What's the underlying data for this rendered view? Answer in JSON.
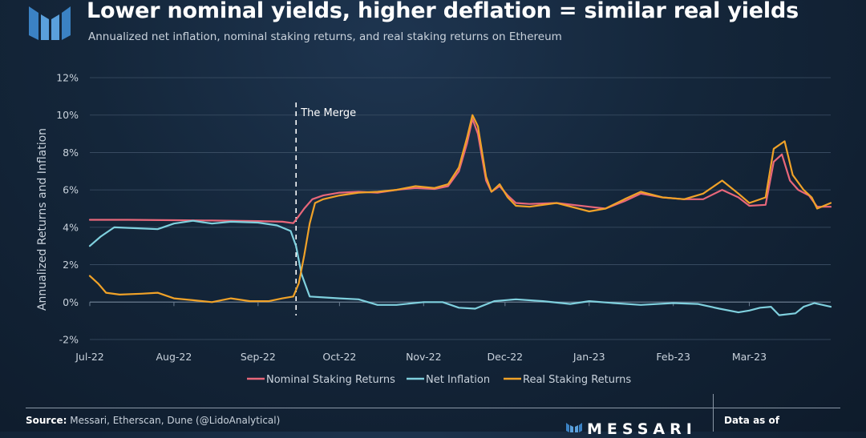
{
  "header": {
    "title": "Lower nominal yields, higher deflation = similar real yields",
    "subtitle": "Annualized net inflation, nominal staking returns, and real staking returns on Ethereum"
  },
  "footer": {
    "source_label": "Source:",
    "source_text": "Messari, Etherscan, Dune (@LidoAnalytical)",
    "brand": "MESSARI",
    "data_as_of": "Data as of"
  },
  "colors": {
    "nominal": "#e8677a",
    "inflation": "#7fd0de",
    "real": "#f0a228",
    "grid": "#3d5066",
    "text": "#c9d2dc"
  },
  "chart_data": {
    "type": "line",
    "ylabel": "Annualized Returns and Inflation",
    "xlabel": "",
    "ylim": [
      -2,
      12
    ],
    "yticks": [
      -2,
      0,
      2,
      4,
      6,
      8,
      10,
      12
    ],
    "ytick_labels": [
      "-2%",
      "0%",
      "2%",
      "4%",
      "6%",
      "8%",
      "10%",
      "12%"
    ],
    "x_start": "2022-07-01",
    "x_end": "2023-03-31",
    "xticks": [
      {
        "date": "2022-07-01",
        "label": "Jul-22"
      },
      {
        "date": "2022-08-01",
        "label": "Aug-22"
      },
      {
        "date": "2022-09-01",
        "label": "Sep-22"
      },
      {
        "date": "2022-10-01",
        "label": "Oct-22"
      },
      {
        "date": "2022-11-01",
        "label": "Nov-22"
      },
      {
        "date": "2022-12-01",
        "label": "Dec-22"
      },
      {
        "date": "2023-01-01",
        "label": "Jan-23"
      },
      {
        "date": "2023-02-01",
        "label": "Feb-23"
      },
      {
        "date": "2023-03-01",
        "label": "Mar-23"
      }
    ],
    "annotation": {
      "date": "2022-09-15",
      "label": "The Merge"
    },
    "grid": true,
    "legend_position": "bottom",
    "series": [
      {
        "name": "Nominal Staking Returns",
        "color_key": "nominal",
        "points": [
          [
            "2022-07-01",
            4.4
          ],
          [
            "2022-07-15",
            4.4
          ],
          [
            "2022-08-01",
            4.38
          ],
          [
            "2022-08-15",
            4.36
          ],
          [
            "2022-09-01",
            4.33
          ],
          [
            "2022-09-10",
            4.3
          ],
          [
            "2022-09-14",
            4.22
          ],
          [
            "2022-09-16",
            4.6
          ],
          [
            "2022-09-18",
            5.0
          ],
          [
            "2022-09-21",
            5.5
          ],
          [
            "2022-09-25",
            5.7
          ],
          [
            "2022-10-01",
            5.85
          ],
          [
            "2022-10-08",
            5.9
          ],
          [
            "2022-10-15",
            5.85
          ],
          [
            "2022-10-22",
            6.0
          ],
          [
            "2022-10-29",
            6.1
          ],
          [
            "2022-11-05",
            6.05
          ],
          [
            "2022-11-10",
            6.2
          ],
          [
            "2022-11-14",
            7.0
          ],
          [
            "2022-11-17",
            8.5
          ],
          [
            "2022-11-19",
            9.8
          ],
          [
            "2022-11-21",
            9.0
          ],
          [
            "2022-11-24",
            6.5
          ],
          [
            "2022-11-26",
            5.9
          ],
          [
            "2022-11-29",
            6.2
          ],
          [
            "2022-12-02",
            5.7
          ],
          [
            "2022-12-05",
            5.3
          ],
          [
            "2022-12-10",
            5.25
          ],
          [
            "2022-12-20",
            5.3
          ],
          [
            "2023-01-01",
            5.1
          ],
          [
            "2023-01-07",
            5.0
          ],
          [
            "2023-01-14",
            5.4
          ],
          [
            "2023-01-20",
            5.8
          ],
          [
            "2023-01-28",
            5.6
          ],
          [
            "2023-02-05",
            5.5
          ],
          [
            "2023-02-12",
            5.5
          ],
          [
            "2023-02-19",
            6.0
          ],
          [
            "2023-02-25",
            5.6
          ],
          [
            "2023-03-01",
            5.15
          ],
          [
            "2023-03-07",
            5.2
          ],
          [
            "2023-03-10",
            7.5
          ],
          [
            "2023-03-13",
            7.9
          ],
          [
            "2023-03-16",
            6.5
          ],
          [
            "2023-03-19",
            6.0
          ],
          [
            "2023-03-23",
            5.7
          ],
          [
            "2023-03-26",
            5.1
          ],
          [
            "2023-03-31",
            5.1
          ]
        ]
      },
      {
        "name": "Net Inflation",
        "color_key": "inflation",
        "points": [
          [
            "2022-07-01",
            3.0
          ],
          [
            "2022-07-05",
            3.5
          ],
          [
            "2022-07-10",
            4.0
          ],
          [
            "2022-07-18",
            3.95
          ],
          [
            "2022-07-26",
            3.9
          ],
          [
            "2022-08-01",
            4.2
          ],
          [
            "2022-08-08",
            4.35
          ],
          [
            "2022-08-15",
            4.2
          ],
          [
            "2022-08-22",
            4.3
          ],
          [
            "2022-09-01",
            4.25
          ],
          [
            "2022-09-08",
            4.1
          ],
          [
            "2022-09-13",
            3.8
          ],
          [
            "2022-09-15",
            3.0
          ],
          [
            "2022-09-17",
            1.5
          ],
          [
            "2022-09-20",
            0.3
          ],
          [
            "2022-09-25",
            0.25
          ],
          [
            "2022-10-01",
            0.2
          ],
          [
            "2022-10-08",
            0.15
          ],
          [
            "2022-10-15",
            -0.15
          ],
          [
            "2022-10-22",
            -0.15
          ],
          [
            "2022-11-01",
            0.0
          ],
          [
            "2022-11-08",
            0.0
          ],
          [
            "2022-11-14",
            -0.3
          ],
          [
            "2022-11-20",
            -0.35
          ],
          [
            "2022-11-27",
            0.05
          ],
          [
            "2022-12-05",
            0.15
          ],
          [
            "2022-12-15",
            0.05
          ],
          [
            "2022-12-25",
            -0.1
          ],
          [
            "2023-01-01",
            0.05
          ],
          [
            "2023-01-10",
            -0.05
          ],
          [
            "2023-01-20",
            -0.15
          ],
          [
            "2023-02-01",
            -0.05
          ],
          [
            "2023-02-10",
            -0.1
          ],
          [
            "2023-02-18",
            -0.35
          ],
          [
            "2023-02-25",
            -0.55
          ],
          [
            "2023-03-01",
            -0.45
          ],
          [
            "2023-03-05",
            -0.3
          ],
          [
            "2023-03-09",
            -0.25
          ],
          [
            "2023-03-12",
            -0.7
          ],
          [
            "2023-03-18",
            -0.6
          ],
          [
            "2023-03-21",
            -0.25
          ],
          [
            "2023-03-25",
            -0.05
          ],
          [
            "2023-03-31",
            -0.25
          ]
        ]
      },
      {
        "name": "Real Staking Returns",
        "color_key": "real",
        "points": [
          [
            "2022-07-01",
            1.4
          ],
          [
            "2022-07-04",
            1.0
          ],
          [
            "2022-07-07",
            0.5
          ],
          [
            "2022-07-12",
            0.4
          ],
          [
            "2022-07-20",
            0.45
          ],
          [
            "2022-07-26",
            0.5
          ],
          [
            "2022-08-01",
            0.2
          ],
          [
            "2022-08-08",
            0.1
          ],
          [
            "2022-08-15",
            0.0
          ],
          [
            "2022-08-22",
            0.2
          ],
          [
            "2022-08-29",
            0.05
          ],
          [
            "2022-09-05",
            0.05
          ],
          [
            "2022-09-10",
            0.2
          ],
          [
            "2022-09-14",
            0.3
          ],
          [
            "2022-09-16",
            1.0
          ],
          [
            "2022-09-18",
            2.5
          ],
          [
            "2022-09-20",
            4.2
          ],
          [
            "2022-09-22",
            5.3
          ],
          [
            "2022-09-25",
            5.5
          ],
          [
            "2022-10-01",
            5.7
          ],
          [
            "2022-10-08",
            5.85
          ],
          [
            "2022-10-15",
            5.9
          ],
          [
            "2022-10-22",
            6.0
          ],
          [
            "2022-10-29",
            6.2
          ],
          [
            "2022-11-05",
            6.1
          ],
          [
            "2022-11-10",
            6.3
          ],
          [
            "2022-11-14",
            7.2
          ],
          [
            "2022-11-17",
            8.8
          ],
          [
            "2022-11-19",
            10.0
          ],
          [
            "2022-11-21",
            9.4
          ],
          [
            "2022-11-24",
            6.7
          ],
          [
            "2022-11-26",
            5.9
          ],
          [
            "2022-11-29",
            6.3
          ],
          [
            "2022-12-02",
            5.6
          ],
          [
            "2022-12-05",
            5.15
          ],
          [
            "2022-12-10",
            5.1
          ],
          [
            "2022-12-20",
            5.3
          ],
          [
            "2023-01-01",
            4.85
          ],
          [
            "2023-01-07",
            5.0
          ],
          [
            "2023-01-14",
            5.5
          ],
          [
            "2023-01-20",
            5.9
          ],
          [
            "2023-01-28",
            5.6
          ],
          [
            "2023-02-05",
            5.5
          ],
          [
            "2023-02-12",
            5.8
          ],
          [
            "2023-02-19",
            6.5
          ],
          [
            "2023-02-25",
            5.8
          ],
          [
            "2023-03-01",
            5.3
          ],
          [
            "2023-03-07",
            5.6
          ],
          [
            "2023-03-10",
            8.2
          ],
          [
            "2023-03-14",
            8.6
          ],
          [
            "2023-03-17",
            6.8
          ],
          [
            "2023-03-21",
            6.0
          ],
          [
            "2023-03-24",
            5.6
          ],
          [
            "2023-03-26",
            5.0
          ],
          [
            "2023-03-31",
            5.3
          ]
        ]
      }
    ]
  }
}
